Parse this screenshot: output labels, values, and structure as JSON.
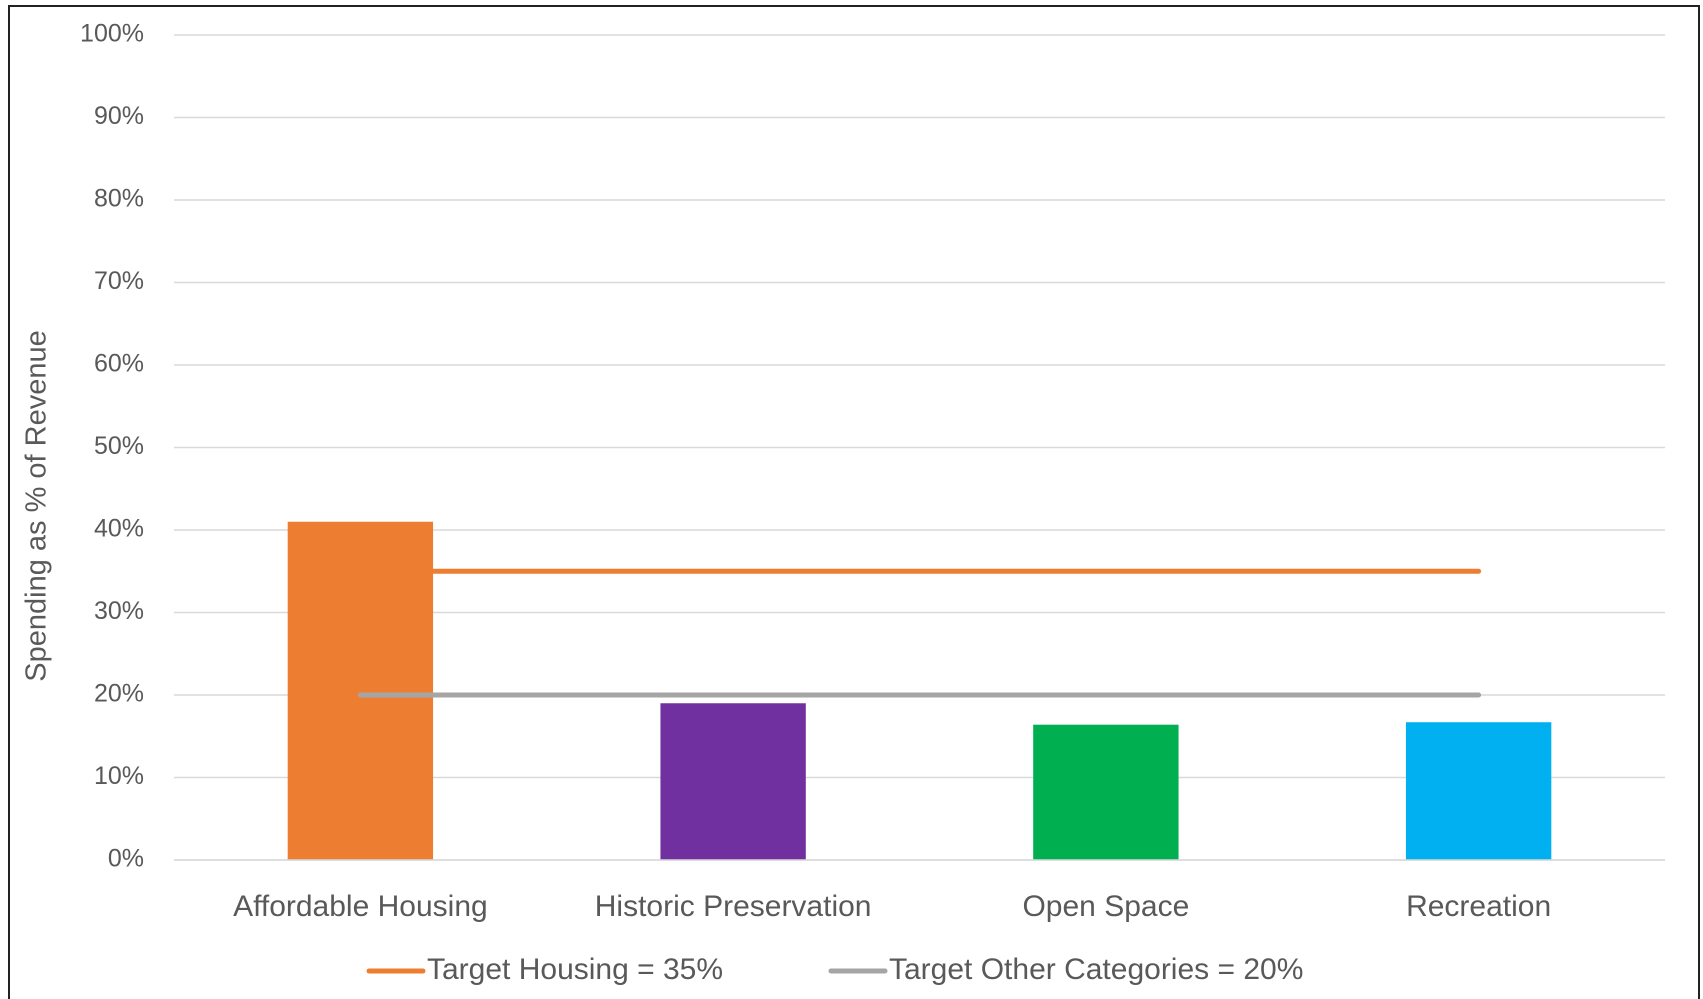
{
  "chart_data": {
    "type": "bar",
    "y_label": "Spending as % of Revenue",
    "categories": [
      "Affordable Housing",
      "Historic Preservation",
      "Open Space",
      "Recreation"
    ],
    "values": [
      41,
      19,
      16.4,
      16.7
    ],
    "colors": [
      "#ED7D31",
      "#7030A0",
      "#00B050",
      "#00B0F0"
    ],
    "series": [
      {
        "name": "Target Housing = 35%",
        "type": "line",
        "color": "#ED7D31",
        "values": [
          35,
          35,
          35,
          35
        ]
      },
      {
        "name": "Target Other Categories = 20%",
        "type": "line",
        "color": "#A5A5A5",
        "values": [
          20,
          20,
          20,
          20
        ]
      }
    ],
    "ylim": [
      0,
      100
    ],
    "yticks": [
      {
        "value": 0,
        "label": "0%"
      },
      {
        "value": 10,
        "label": "10%"
      },
      {
        "value": 20,
        "label": "20%"
      },
      {
        "value": 30,
        "label": "30%"
      },
      {
        "value": 40,
        "label": "40%"
      },
      {
        "value": 50,
        "label": "50%"
      },
      {
        "value": 60,
        "label": "60%"
      },
      {
        "value": 70,
        "label": "70%"
      },
      {
        "value": 80,
        "label": "80%"
      },
      {
        "value": 90,
        "label": "90%"
      },
      {
        "value": 100,
        "label": "100%"
      }
    ],
    "grid": true,
    "legend": "bottom"
  }
}
